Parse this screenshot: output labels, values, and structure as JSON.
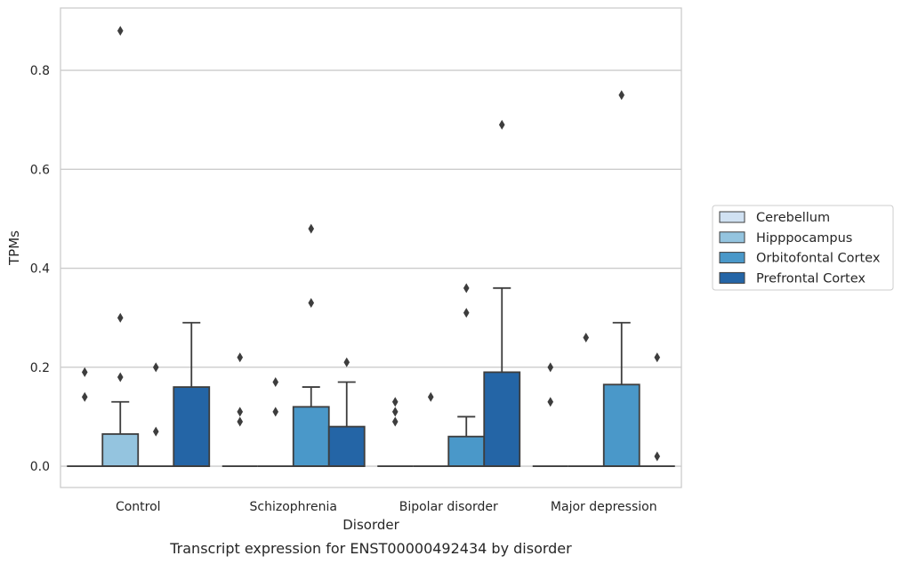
{
  "chart_data": {
    "type": "box",
    "title": "",
    "caption": "Transcript expression for ENST00000492434 by disorder",
    "xlabel": "Disorder",
    "ylabel": "TPMs",
    "ylim": [
      -0.043,
      0.926
    ],
    "yticks": [
      0.0,
      0.2,
      0.4,
      0.6,
      0.8
    ],
    "ytick_labels": [
      "0.0",
      "0.2",
      "0.4",
      "0.6",
      "0.8"
    ],
    "grid": "horizontal",
    "legend_position": "right",
    "categories": [
      "Control",
      "Schizophrenia",
      "Bipolar disorder",
      "Major depression"
    ],
    "series": [
      {
        "name": "Cerebellum",
        "color": "#d0e1f2",
        "boxes": [
          {
            "q1": 0,
            "q3": 0,
            "median": 0,
            "whisker_low": 0,
            "whisker_high": 0,
            "outliers": [
              0.19,
              0.14
            ]
          },
          {
            "q1": 0,
            "q3": 0,
            "median": 0,
            "whisker_low": 0,
            "whisker_high": 0,
            "outliers": [
              0.22,
              0.11,
              0.09
            ]
          },
          {
            "q1": 0,
            "q3": 0,
            "median": 0,
            "whisker_low": 0,
            "whisker_high": 0,
            "outliers": [
              0.13,
              0.11,
              0.09
            ]
          },
          {
            "q1": 0,
            "q3": 0,
            "median": 0,
            "whisker_low": 0,
            "whisker_high": 0,
            "outliers": [
              0.2,
              0.13
            ]
          }
        ]
      },
      {
        "name": "Hipppocampus",
        "color": "#94c4df",
        "boxes": [
          {
            "q1": 0,
            "q3": 0.065,
            "median": 0,
            "whisker_low": 0,
            "whisker_high": 0.13,
            "outliers": [
              0.88,
              0.3,
              0.18
            ]
          },
          {
            "q1": 0,
            "q3": 0,
            "median": 0,
            "whisker_low": 0,
            "whisker_high": 0,
            "outliers": [
              0.17,
              0.11
            ]
          },
          {
            "q1": 0,
            "q3": 0,
            "median": 0,
            "whisker_low": 0,
            "whisker_high": 0,
            "outliers": [
              0.14
            ]
          },
          {
            "q1": 0,
            "q3": 0,
            "median": 0,
            "whisker_low": 0,
            "whisker_high": 0,
            "outliers": [
              0.26
            ]
          }
        ]
      },
      {
        "name": "Orbitofontal Cortex",
        "color": "#4a98c9",
        "boxes": [
          {
            "q1": 0,
            "q3": 0,
            "median": 0,
            "whisker_low": 0,
            "whisker_high": 0,
            "outliers": [
              0.2,
              0.07
            ]
          },
          {
            "q1": 0,
            "q3": 0.12,
            "median": 0,
            "whisker_low": 0,
            "whisker_high": 0.16,
            "outliers": [
              0.48,
              0.33
            ]
          },
          {
            "q1": 0,
            "q3": 0.06,
            "median": 0,
            "whisker_low": 0,
            "whisker_high": 0.1,
            "outliers": [
              0.36,
              0.31
            ]
          },
          {
            "q1": 0,
            "q3": 0.165,
            "median": 0,
            "whisker_low": 0,
            "whisker_high": 0.29,
            "outliers": [
              0.75
            ]
          }
        ]
      },
      {
        "name": "Prefrontal Cortex",
        "color": "#2465a6",
        "boxes": [
          {
            "q1": 0,
            "q3": 0.16,
            "median": 0,
            "whisker_low": 0,
            "whisker_high": 0.29,
            "outliers": []
          },
          {
            "q1": 0,
            "q3": 0.08,
            "median": 0,
            "whisker_low": 0,
            "whisker_high": 0.17,
            "outliers": [
              0.21
            ]
          },
          {
            "q1": 0,
            "q3": 0.19,
            "median": 0,
            "whisker_low": 0,
            "whisker_high": 0.36,
            "outliers": [
              0.69
            ]
          },
          {
            "q1": 0,
            "q3": 0,
            "median": 0,
            "whisker_low": 0,
            "whisker_high": 0,
            "outliers": [
              0.22,
              0.02
            ]
          }
        ]
      }
    ]
  }
}
